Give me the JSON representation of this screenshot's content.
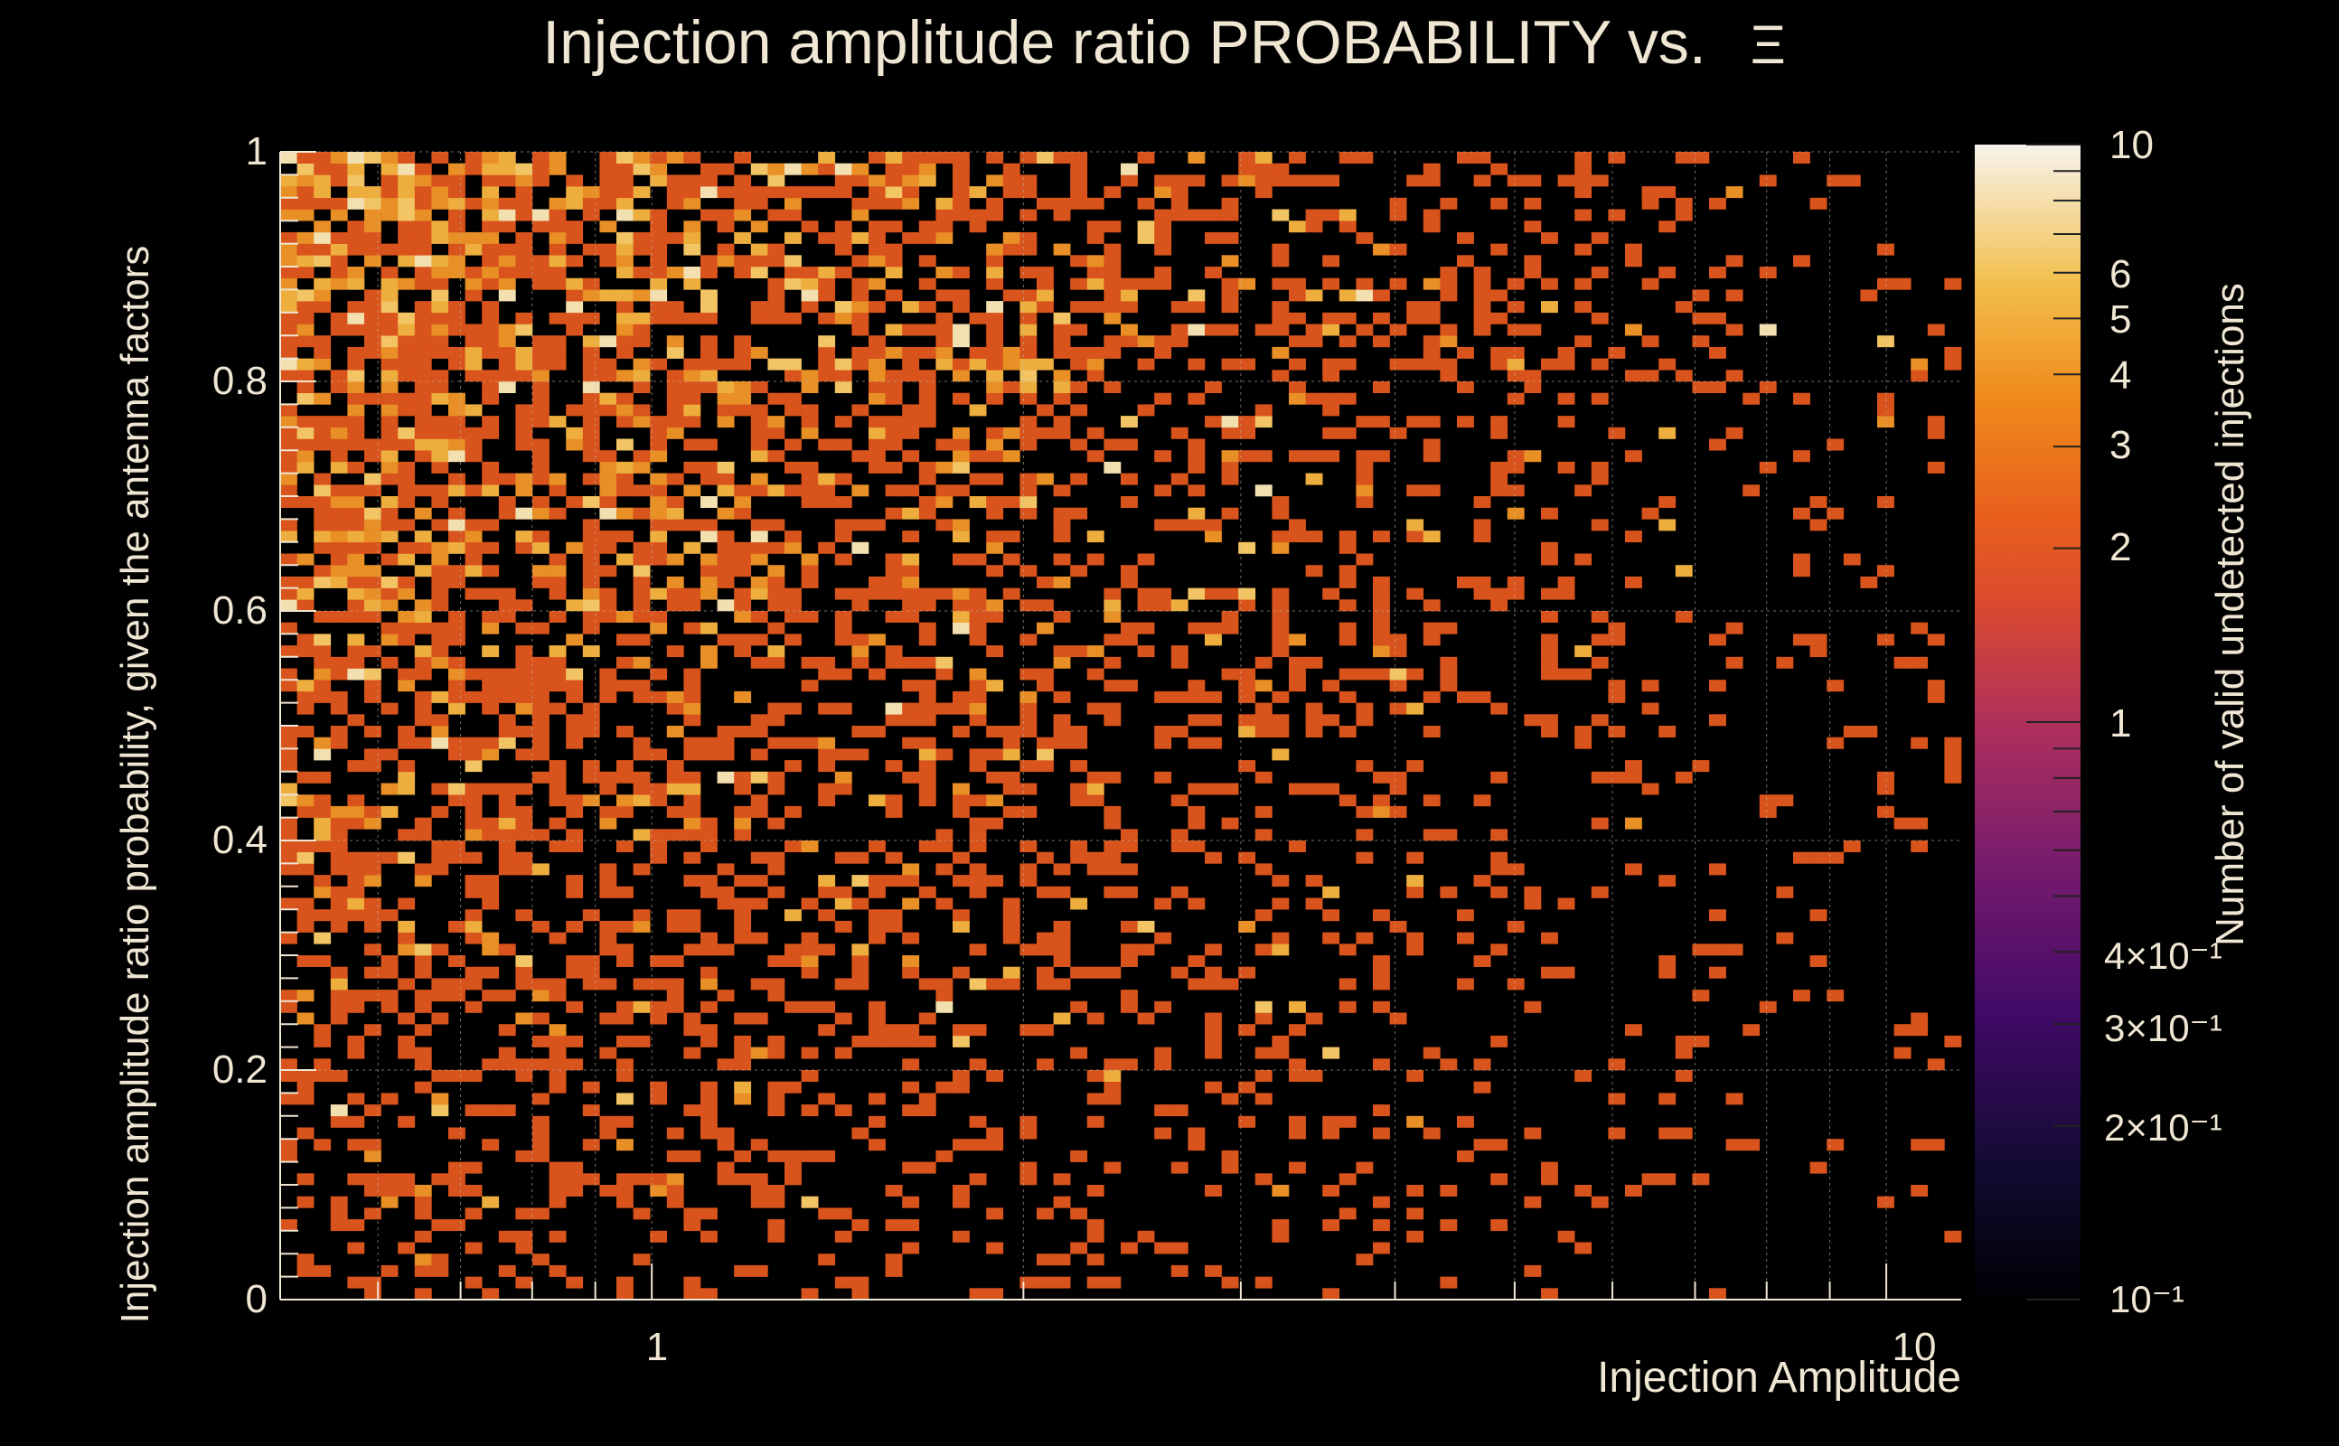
{
  "chart_data": {
    "type": "heatmap",
    "title": "Injection amplitude ratio PROBABILITY vs.",
    "title_symbol": "Ξ",
    "xlabel": "Injection Amplitude",
    "ylabel": "Injection amplitude ratio probability, given the antenna factors",
    "zlabel": "Number of valid undetected injections",
    "x_scale": "log",
    "xlim": [
      0.5,
      11.5
    ],
    "ylim": [
      0,
      1
    ],
    "z_scale": "log",
    "zlim": [
      0.1,
      10
    ],
    "x_ticks": [
      {
        "value": 1,
        "label": "1"
      },
      {
        "value": 10,
        "label": "10"
      }
    ],
    "y_ticks": [
      {
        "value": 0,
        "label": "0"
      },
      {
        "value": 0.2,
        "label": "0.2"
      },
      {
        "value": 0.4,
        "label": "0.4"
      },
      {
        "value": 0.6,
        "label": "0.6"
      },
      {
        "value": 0.8,
        "label": "0.8"
      },
      {
        "value": 1,
        "label": "1"
      }
    ],
    "z_ticks": [
      {
        "value": 10,
        "label": "10"
      },
      {
        "value": 6,
        "label": "6"
      },
      {
        "value": 5,
        "label": "5"
      },
      {
        "value": 4,
        "label": "4"
      },
      {
        "value": 3,
        "label": "3"
      },
      {
        "value": 2,
        "label": "2"
      },
      {
        "value": 1,
        "label": "1"
      },
      {
        "value": 0.4,
        "label": "4×10⁻¹"
      },
      {
        "value": 0.3,
        "label": "3×10⁻¹"
      },
      {
        "value": 0.2,
        "label": "2×10⁻¹"
      },
      {
        "value": 0.1,
        "label": "10⁻¹"
      }
    ],
    "grid": true,
    "bins_x": 100,
    "bins_y": 100,
    "density_note": "Counts of 1-6 per bin; densest at low amplitude (0.5-2) and high probability (0.4-1.0); sparse toward high amplitude and low probability.",
    "colormap": [
      "#000004",
      "#1b0c41",
      "#4a0c6b",
      "#781c6d",
      "#a52c60",
      "#cf4446",
      "#ed6925",
      "#fb9b06",
      "#f7d13d",
      "#fcffa4"
    ]
  }
}
